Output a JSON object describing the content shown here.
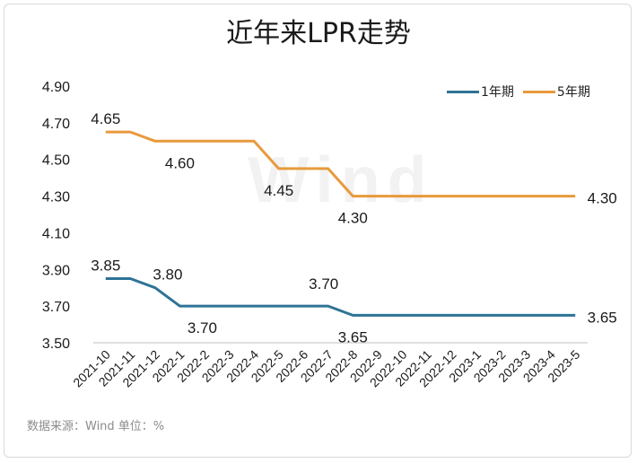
{
  "chart_data": {
    "type": "line",
    "title": "近年来LPR走势",
    "categories": [
      "2021-10",
      "2021-11",
      "2021-12",
      "2022-1",
      "2022-2",
      "2022-3",
      "2022-4",
      "2022-5",
      "2022-6",
      "2022-7",
      "2022-8",
      "2022-9",
      "2022-10",
      "2022-11",
      "2022-12",
      "2023-1",
      "2023-2",
      "2023-3",
      "2023-4",
      "2023-5"
    ],
    "series": [
      {
        "name": "1年期",
        "color": "#2e7396",
        "values": [
          3.85,
          3.85,
          3.8,
          3.7,
          3.7,
          3.7,
          3.7,
          3.7,
          3.7,
          3.7,
          3.65,
          3.65,
          3.65,
          3.65,
          3.65,
          3.65,
          3.65,
          3.65,
          3.65,
          3.65
        ]
      },
      {
        "name": "5年期",
        "color": "#e89a3c",
        "values": [
          4.65,
          4.65,
          4.6,
          4.6,
          4.6,
          4.6,
          4.6,
          4.45,
          4.45,
          4.45,
          4.3,
          4.3,
          4.3,
          4.3,
          4.3,
          4.3,
          4.3,
          4.3,
          4.3,
          4.3
        ]
      }
    ],
    "ylim": [
      3.5,
      4.9
    ],
    "yticks": [
      "3.50",
      "3.70",
      "3.90",
      "4.10",
      "4.30",
      "4.50",
      "4.70",
      "4.90"
    ],
    "data_labels": [
      {
        "series": 1,
        "index": 0,
        "text": "4.65"
      },
      {
        "series": 1,
        "index": 3,
        "text": "4.60"
      },
      {
        "series": 1,
        "index": 7,
        "text": "4.45"
      },
      {
        "series": 1,
        "index": 10,
        "text": "4.30"
      },
      {
        "series": 1,
        "index": 19,
        "text": "4.30"
      },
      {
        "series": 0,
        "index": 0,
        "text": "3.85"
      },
      {
        "series": 0,
        "index": 2,
        "text": "3.80"
      },
      {
        "series": 0,
        "index": 3,
        "text": "3.70"
      },
      {
        "series": 0,
        "index": 9,
        "text": "3.70"
      },
      {
        "series": 0,
        "index": 10,
        "text": "3.65"
      },
      {
        "series": 0,
        "index": 19,
        "text": "3.65"
      }
    ],
    "grid": false,
    "legend_position": "top-right",
    "watermark": "Wind"
  },
  "source_note": "数据来源：Wind   单位：%"
}
